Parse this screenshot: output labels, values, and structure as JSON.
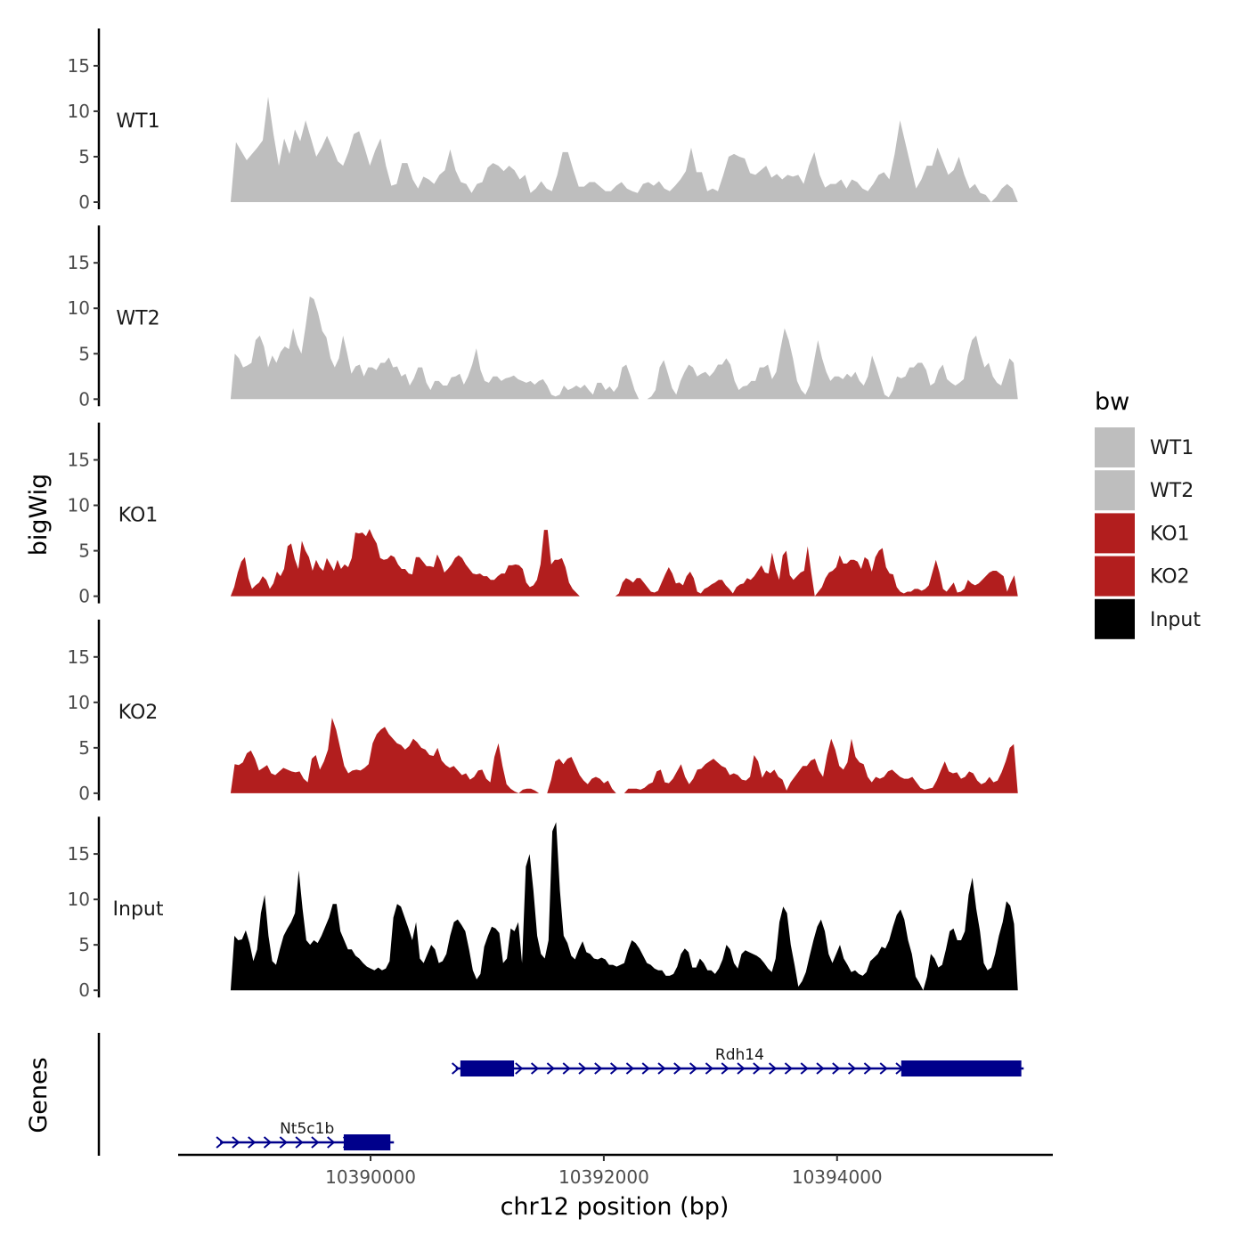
{
  "chart_data": {
    "type": "area",
    "ylabel": "bigWig",
    "xlabel": "chr12 position (bp)",
    "genes_label": "Genes",
    "xlim": [
      10388350,
      10395850
    ],
    "ylim": [
      0,
      19.3
    ],
    "y_ticks": [
      0,
      5,
      10,
      15
    ],
    "x_ticks": [
      10390000,
      10392000,
      10394000
    ],
    "x_tick_labels": [
      "10390000",
      "10392000",
      "10394000"
    ],
    "x_start": 10388800,
    "x_end": 10395550,
    "legend": {
      "title": "bw",
      "placement": "right",
      "entries": [
        {
          "label": "WT1",
          "color": "#bebebe"
        },
        {
          "label": "WT2",
          "color": "#bebebe"
        },
        {
          "label": "KO1",
          "color": "#b21e1e"
        },
        {
          "label": "KO2",
          "color": "#b21e1e"
        },
        {
          "label": "Input",
          "color": "#000000"
        }
      ]
    },
    "series": [
      {
        "name": "WT1",
        "color": "#bebebe",
        "values": [
          0,
          6.6,
          5.6,
          4.6,
          5.3,
          6,
          6.8,
          11.6,
          7.5,
          4,
          7,
          5.3,
          8,
          6.7,
          9,
          7,
          5,
          6,
          7.3,
          6,
          4.5,
          4,
          5.5,
          7.5,
          7.8,
          6,
          4,
          5.7,
          7,
          4,
          1.8,
          2,
          4.3,
          4.3,
          2.5,
          1.5,
          2.8,
          2.5,
          2,
          3,
          3.5,
          5.8,
          3.5,
          2.2,
          2,
          1,
          2,
          2.2,
          3.8,
          4.3,
          4,
          3.4,
          4,
          3.5,
          2.5,
          3,
          1,
          1.5,
          2.3,
          1.5,
          1.2,
          3,
          5.5,
          5.5,
          3.5,
          1.7,
          1.7,
          2.2,
          2.2,
          1.7,
          1.2,
          1.2,
          1.8,
          2.2,
          1.5,
          1.2,
          1,
          2,
          2.2,
          1.8,
          2.3,
          1.5,
          1.2,
          1.8,
          2.5,
          3.4,
          6,
          3.3,
          3.3,
          1.2,
          1.5,
          1.2,
          3,
          5,
          5.3,
          5,
          4.8,
          3.2,
          3,
          3.5,
          4,
          2.7,
          3.1,
          2.5,
          3,
          2.8,
          3,
          2,
          4,
          5.5,
          3,
          1.6,
          2,
          2,
          2.5,
          1.5,
          2.5,
          2.2,
          1.5,
          1.2,
          2,
          3,
          3.3,
          2.5,
          5.3,
          9,
          6.5,
          4,
          1.5,
          2.5,
          4,
          4,
          6,
          4.5,
          3,
          3.5,
          5,
          3,
          1.5,
          2,
          1,
          0.8,
          0,
          0.6,
          1.5,
          2,
          1.5,
          0
        ]
      },
      {
        "name": "WT2",
        "color": "#bebebe",
        "values": [
          0,
          5,
          4.5,
          3.5,
          3.7,
          4,
          6.5,
          7,
          5.8,
          3.5,
          4.8,
          4,
          5.2,
          5.8,
          5.5,
          7.8,
          6,
          5,
          8,
          11.3,
          11,
          9.5,
          7.5,
          6.8,
          4.5,
          3.5,
          4.5,
          7,
          5,
          2.8,
          3.6,
          3.8,
          2.5,
          3.5,
          3.5,
          3.2,
          4,
          4,
          4.6,
          3.5,
          3.6,
          2.5,
          2.8,
          1.5,
          2.3,
          3.5,
          3.5,
          1.8,
          1,
          2,
          2,
          1.5,
          1.5,
          2.4,
          2.5,
          2.8,
          1.6,
          2.5,
          3.8,
          5.6,
          3.2,
          2,
          1.8,
          2.5,
          2.5,
          2,
          2.3,
          2.4,
          2.6,
          2.2,
          2,
          1.8,
          2,
          1.6,
          2,
          2.2,
          1.5,
          0.5,
          0.3,
          0.5,
          1.5,
          1,
          1.2,
          1.5,
          1.2,
          1.6,
          1,
          0.5,
          1.8,
          1.8,
          1,
          1.4,
          0.8,
          1.4,
          3.5,
          3.8,
          2.5,
          1,
          0,
          0,
          0,
          0.3,
          1,
          3.5,
          4.3,
          2.8,
          1.2,
          0.5,
          2,
          3,
          3.8,
          3.5,
          2.5,
          2.8,
          3,
          2.5,
          3,
          3.8,
          3.8,
          4.5,
          3.8,
          2,
          1,
          1.4,
          1.5,
          2,
          2,
          3.5,
          3.5,
          3.8,
          2.2,
          3,
          5.5,
          7.8,
          6.5,
          4.5,
          2,
          1,
          0.5,
          1.5,
          4,
          6.5,
          4.5,
          3,
          2,
          2.5,
          2.5,
          2.2,
          2.8,
          2.4,
          3,
          2,
          1.5,
          2.5,
          4.8,
          3.5,
          2,
          0.5,
          0.2,
          1,
          2.5,
          2.3,
          2.5,
          3.5,
          3.5,
          4,
          4,
          3.2,
          1.5,
          1.8,
          3.2,
          3.8,
          2.2,
          1.8,
          1.5,
          1.8,
          2.2,
          4.8,
          6.5,
          7,
          5,
          3.5,
          4,
          2.5,
          1.8,
          1.5,
          3,
          4.5,
          4,
          0
        ]
      },
      {
        "name": "KO1",
        "color": "#b21e1e",
        "values": [
          0,
          1,
          2.6,
          3.8,
          4.3,
          2,
          0.8,
          1.2,
          1.5,
          2.2,
          1.8,
          0.8,
          1.4,
          2.7,
          2.2,
          3,
          5.5,
          5.8,
          4.1,
          3,
          6.1,
          5,
          4.3,
          2.8,
          4,
          3.2,
          2.8,
          4.2,
          3.5,
          2.8,
          4,
          3,
          3.5,
          3.2,
          4.2,
          7,
          6.9,
          7,
          6.6,
          7.4,
          6.5,
          5.8,
          4.2,
          4,
          4.1,
          4.5,
          4.3,
          3.5,
          3,
          3,
          2.5,
          2.4,
          4.3,
          4.3,
          3.8,
          3.3,
          3.3,
          3.2,
          4.6,
          3.8,
          2.6,
          3,
          3.5,
          4.2,
          4.5,
          4.2,
          3.5,
          3,
          2.5,
          2.4,
          2.5,
          2.2,
          2.2,
          1.8,
          1.8,
          2.2,
          2.5,
          2.5,
          3.4,
          3.4,
          3.5,
          3.4,
          3,
          1.5,
          1,
          1.2,
          1.8,
          3.5,
          7.3,
          7.3,
          3.5,
          4,
          4,
          4.2,
          3.2,
          1.5,
          0.8,
          0.4,
          0,
          0,
          0,
          0,
          0,
          0,
          0,
          0,
          0,
          0,
          0,
          0.3,
          1.5,
          2,
          1.8,
          1.5,
          2,
          2,
          1.5,
          1,
          0.5,
          0.4,
          0.6,
          1.5,
          2.4,
          3.2,
          2.5,
          1.4,
          1.5,
          1.2,
          2.2,
          2.7,
          2,
          0.5,
          0.3,
          0.8,
          1,
          1.3,
          1.5,
          1.8,
          1.8,
          1.2,
          0.8,
          0.3,
          1,
          1.3,
          1.4,
          2,
          1.8,
          2.2,
          2.8,
          3.4,
          2.6,
          2.5,
          4.8,
          3,
          1.8,
          4.5,
          5,
          2.3,
          1.8,
          2.2,
          2.6,
          2.8,
          5.5,
          2.6,
          0,
          0.5,
          1,
          2,
          2.6,
          2.8,
          3.2,
          4.5,
          3.6,
          3.6,
          4,
          4,
          3.8,
          3,
          4.3,
          4,
          2.7,
          4.3,
          5,
          5.3,
          3.2,
          2.5,
          2.4,
          1,
          0.5,
          0.3,
          0.5,
          0.5,
          0.8,
          0.8,
          0.6,
          0.8,
          1.2,
          2.6,
          4,
          2.6,
          0.8,
          0.5,
          1,
          1.5,
          0.4,
          0.5,
          0.8,
          1.8,
          1.4,
          1.2,
          1.4,
          1.8,
          2.2,
          2.6,
          2.8,
          2.8,
          2.5,
          2.2,
          0.5,
          1.5,
          2.3,
          0
        ]
      },
      {
        "name": "KO2",
        "color": "#b21e1e",
        "values": [
          0,
          3.2,
          3.1,
          3.4,
          4.4,
          4.7,
          3.8,
          2.5,
          2.8,
          3.1,
          2.2,
          2,
          2.4,
          2.8,
          2.6,
          2.4,
          2.3,
          2.4,
          1.6,
          1.2,
          3.8,
          4.2,
          2.6,
          3.5,
          4.8,
          8.3,
          7,
          5,
          3,
          2.2,
          2.5,
          2.6,
          2.5,
          2.8,
          3.2,
          5.5,
          6.5,
          7,
          7.3,
          6.5,
          6,
          5.5,
          5.3,
          4.8,
          5.2,
          6,
          5.6,
          5,
          4.8,
          4.2,
          4.1,
          5,
          3.6,
          3.1,
          2.8,
          3,
          2.5,
          2,
          2.2,
          1.5,
          1.8,
          2.5,
          2.6,
          1.6,
          1.2,
          4,
          5.5,
          3,
          1,
          0.5,
          0.2,
          0,
          0.4,
          0.5,
          0.5,
          0.3,
          0,
          0,
          0,
          1.5,
          3.5,
          3.8,
          3.2,
          3.8,
          4,
          3,
          2,
          1.4,
          1,
          1.6,
          1.8,
          1.6,
          1.1,
          1.4,
          0.5,
          0,
          0,
          0,
          0.5,
          0.5,
          0.5,
          0.4,
          0.6,
          1,
          1.2,
          2.4,
          2.6,
          1.2,
          1.1,
          1.6,
          2.4,
          3.2,
          1.8,
          1,
          1.6,
          2.6,
          2.7,
          3.2,
          3.5,
          3.8,
          3.4,
          3,
          2.8,
          2,
          2.2,
          2,
          1.5,
          1.4,
          1.8,
          4.2,
          3.5,
          1.7,
          2.5,
          2.2,
          2.6,
          1.8,
          1.5,
          0.3,
          1.2,
          1.8,
          2.4,
          3,
          3,
          3.6,
          3.8,
          2.5,
          1.8,
          4.2,
          6,
          4.8,
          3,
          2.6,
          3.4,
          6,
          4,
          3.4,
          3.2,
          1.8,
          1.2,
          1.8,
          1.6,
          1.8,
          2.4,
          2.6,
          2.2,
          1.8,
          1.6,
          1.6,
          1.8,
          1.2,
          0.6,
          0.4,
          0.5,
          0.6,
          1.4,
          2.5,
          3.5,
          2.4,
          2.2,
          2.3,
          1.6,
          1.8,
          2.4,
          2.2,
          1.4,
          1,
          1.2,
          1.8,
          1.2,
          1.4,
          2.3,
          3.5,
          5,
          5.4,
          0
        ]
      },
      {
        "name": "Input",
        "color": "#000000",
        "values": [
          0,
          6,
          5.5,
          5.6,
          6.6,
          5.2,
          3.2,
          4.5,
          8.5,
          10.5,
          6,
          3.2,
          2.8,
          4.5,
          6,
          6.8,
          7.5,
          8.5,
          13.2,
          9,
          5.5,
          5,
          5.5,
          5.2,
          6,
          7,
          8,
          9.5,
          9.5,
          6.5,
          5.5,
          4.5,
          4.5,
          3.8,
          3.5,
          3,
          2.6,
          2.4,
          2.2,
          2.5,
          2.2,
          2.4,
          3.2,
          8,
          9.5,
          9.2,
          8,
          6.8,
          5.5,
          7.5,
          3.5,
          3,
          4,
          5,
          4.5,
          3,
          3.2,
          4,
          6,
          7.5,
          7.8,
          7.2,
          6.5,
          4.5,
          2.2,
          1.2,
          1.8,
          4.8,
          6,
          7,
          6.8,
          6.3,
          3,
          3.5,
          6.8,
          6.5,
          7.5,
          3,
          13.6,
          15,
          11,
          6,
          4,
          3.5,
          5.5,
          17.5,
          18.5,
          11,
          6,
          5.2,
          3.8,
          3.4,
          4.5,
          5.4,
          4.2,
          4,
          3.5,
          3.4,
          3.6,
          3.4,
          2.8,
          2.8,
          2.6,
          2.8,
          3,
          4.4,
          5.5,
          5.2,
          4.6,
          3.8,
          3,
          2.8,
          2.4,
          2.2,
          2.2,
          1.6,
          1.6,
          1.8,
          2.6,
          4,
          4.6,
          4.2,
          2.5,
          2.5,
          3.5,
          3,
          2.2,
          2.2,
          1.8,
          2.4,
          3.4,
          5,
          4.5,
          3,
          2.4,
          4,
          4.4,
          4.2,
          4,
          3.8,
          3.5,
          3,
          2.4,
          2,
          3.5,
          7.5,
          9.2,
          8.5,
          5,
          2.8,
          0.4,
          1,
          2,
          3.8,
          5.5,
          7,
          7.8,
          6.5,
          4,
          3,
          4,
          5,
          3.5,
          2.8,
          2,
          2.2,
          1.8,
          1.6,
          2,
          3.2,
          3.6,
          4,
          4.8,
          4.6,
          5.5,
          7,
          8.3,
          8.9,
          7.8,
          5.5,
          4,
          1.5,
          0.8,
          0,
          1.5,
          4,
          3.5,
          2.5,
          2.8,
          4.5,
          6.5,
          6.8,
          5.5,
          5.5,
          6.5,
          10.5,
          12.4,
          9,
          6.5,
          3,
          2.2,
          2.5,
          4,
          6,
          7.5,
          9.8,
          9.3,
          7.3,
          0
        ]
      }
    ],
    "genes": [
      {
        "name": "Rdh14",
        "start": 10390730,
        "end": 10395600,
        "strand": "+",
        "row": 1,
        "exons": [
          [
            10390770,
            10391230
          ],
          [
            10394550,
            10395580
          ]
        ]
      },
      {
        "name": "Nt5c1b",
        "start": 10388710,
        "end": 10390200,
        "strand": "+",
        "row": 2,
        "exons": [
          [
            10389770,
            10390170
          ]
        ]
      }
    ]
  }
}
